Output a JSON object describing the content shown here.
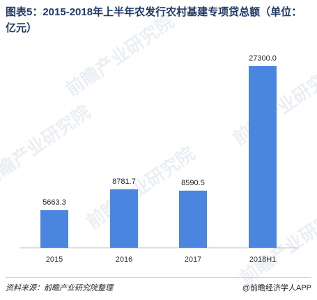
{
  "title": "图表5：2015-2018年上半年农发行农村基建专项贷总额（单位：亿元）",
  "watermark": "前瞻产业研究院",
  "footer": {
    "source": "资料来源：前瞻产业研究院整理",
    "brand": "@前瞻经济学人APP"
  },
  "colors": {
    "bar": "#4a86e0",
    "title": "#1f3864"
  },
  "chart_data": {
    "type": "bar",
    "categories": [
      "2015",
      "2016",
      "2017",
      "2018H1"
    ],
    "values": [
      5663.3,
      8781.7,
      8590.5,
      27300.0
    ],
    "value_labels": [
      "5663.3",
      "8781.7",
      "8590.5",
      "27300.0"
    ],
    "title": "图表5：2015-2018年上半年农发行农村基建专项贷总额（单位：亿元）",
    "xlabel": "",
    "ylabel": "",
    "ylim": [
      0,
      27300
    ],
    "grid": false,
    "legend": "none"
  }
}
